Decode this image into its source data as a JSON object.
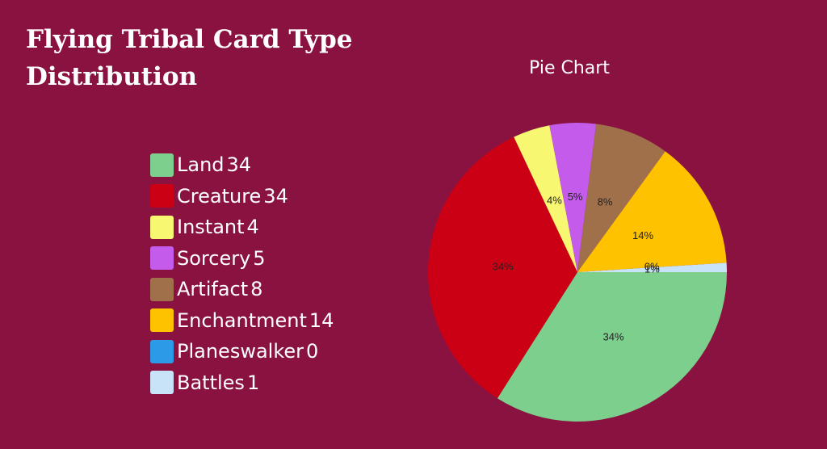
{
  "page": {
    "title": "Flying Tribal Card Type Distribution",
    "background": "#8a1240"
  },
  "chart_data": {
    "type": "pie",
    "title": "Pie Chart",
    "legend_position": "left",
    "slices": [
      {
        "label": "Land",
        "value": 34,
        "percent_label": "34%",
        "color": "#7ccf8c"
      },
      {
        "label": "Creature",
        "value": 34,
        "percent_label": "34%",
        "color": "#cc0015"
      },
      {
        "label": "Instant",
        "value": 4,
        "percent_label": "4%",
        "color": "#f7f772"
      },
      {
        "label": "Sorcery",
        "value": 5,
        "percent_label": "5%",
        "color": "#c45bea"
      },
      {
        "label": "Artifact",
        "value": 8,
        "percent_label": "8%",
        "color": "#a0704b"
      },
      {
        "label": "Enchantment",
        "value": 14,
        "percent_label": "14%",
        "color": "#ffc200"
      },
      {
        "label": "Planeswalker",
        "value": 0,
        "percent_label": "0%",
        "color": "#2d9ae8"
      },
      {
        "label": "Battles",
        "value": 1,
        "percent_label": "1%",
        "color": "#c8e2f8"
      }
    ]
  }
}
